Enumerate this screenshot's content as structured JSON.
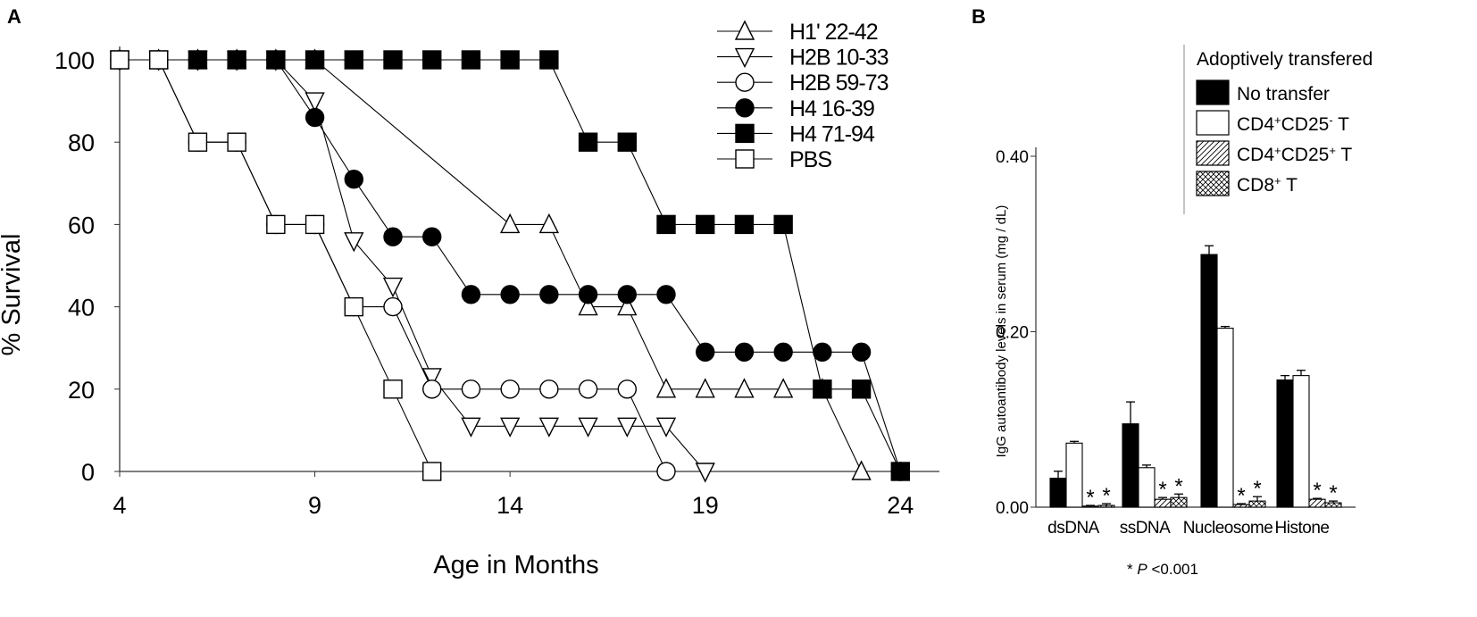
{
  "chart_data": [
    {
      "panel": "A",
      "type": "line",
      "title": "",
      "xlabel": "Age in Months",
      "ylabel": "% Survival",
      "xlim": [
        4,
        25
      ],
      "ylim": [
        0,
        100
      ],
      "xticks": [
        4,
        9,
        14,
        19,
        24
      ],
      "yticks": [
        0,
        20,
        40,
        60,
        80,
        100
      ],
      "legend_position": "top-right",
      "series": [
        {
          "name": "H1' 22-42",
          "marker": "triangle-up",
          "fill": "open",
          "x": [
            4,
            5,
            6,
            7,
            8,
            9,
            14,
            15,
            16,
            17,
            18,
            19,
            20,
            21,
            22,
            23
          ],
          "y": [
            100,
            100,
            100,
            100,
            100,
            100,
            60,
            60,
            40,
            40,
            20,
            20,
            20,
            20,
            20,
            0
          ]
        },
        {
          "name": "H2B 10-33",
          "marker": "triangle-down",
          "fill": "open",
          "x": [
            4,
            5,
            6,
            7,
            8,
            9,
            10,
            11,
            12,
            13,
            14,
            15,
            16,
            17,
            18,
            19
          ],
          "y": [
            100,
            100,
            100,
            100,
            100,
            90,
            56,
            45,
            23,
            11,
            11,
            11,
            11,
            11,
            11,
            0
          ]
        },
        {
          "name": "H2B 59-73",
          "marker": "circle",
          "fill": "open",
          "x": [
            4,
            5,
            6,
            7,
            8,
            9,
            10,
            11,
            12,
            13,
            14,
            15,
            16,
            17,
            18
          ],
          "y": [
            100,
            100,
            80,
            80,
            60,
            60,
            40,
            40,
            20,
            20,
            20,
            20,
            20,
            20,
            0
          ]
        },
        {
          "name": "H4 16-39",
          "marker": "circle",
          "fill": "solid",
          "x": [
            4,
            5,
            6,
            7,
            8,
            9,
            10,
            11,
            12,
            13,
            14,
            15,
            16,
            17,
            18,
            19,
            20,
            21,
            22,
            23,
            24
          ],
          "y": [
            100,
            100,
            100,
            100,
            100,
            86,
            71,
            57,
            57,
            43,
            43,
            43,
            43,
            43,
            43,
            29,
            29,
            29,
            29,
            29,
            0
          ]
        },
        {
          "name": "H4 71-94",
          "marker": "square",
          "fill": "solid",
          "x": [
            4,
            5,
            6,
            7,
            8,
            9,
            10,
            11,
            12,
            13,
            14,
            15,
            16,
            17,
            18,
            19,
            20,
            21,
            22,
            23,
            24
          ],
          "y": [
            100,
            100,
            100,
            100,
            100,
            100,
            100,
            100,
            100,
            100,
            100,
            100,
            80,
            80,
            60,
            60,
            60,
            60,
            20,
            20,
            0
          ]
        },
        {
          "name": "PBS",
          "marker": "square",
          "fill": "open",
          "x": [
            4,
            5,
            6,
            7,
            8,
            9,
            10,
            11,
            12
          ],
          "y": [
            100,
            100,
            80,
            80,
            60,
            60,
            40,
            20,
            0
          ]
        }
      ]
    },
    {
      "panel": "B",
      "type": "bar",
      "title": "",
      "xlabel": "",
      "ylabel": "IgG autoantibody levels in serum (mg / dL)",
      "ylim": [
        0,
        0.4
      ],
      "yticks": [
        "0.00",
        "0.20",
        "0.40"
      ],
      "categories": [
        "dsDNA",
        "ssDNA",
        "Nucleosome",
        "Histone"
      ],
      "legend_title": "Adoptively transfered",
      "legend_position": "top-right",
      "series": [
        {
          "name": "No transfer",
          "name_parts": [
            "No transfer"
          ],
          "fill": "black",
          "values": [
            0.033,
            0.095,
            0.288,
            0.145
          ],
          "errors": [
            0.008,
            0.025,
            0.01,
            0.005
          ]
        },
        {
          "name": "CD4+CD25- T",
          "name_parts": [
            "CD4",
            "+",
            "CD25",
            "-",
            " T"
          ],
          "fill": "white",
          "values": [
            0.073,
            0.045,
            0.204,
            0.15
          ],
          "errors": [
            0.002,
            0.003,
            0.002,
            0.006
          ]
        },
        {
          "name": "CD4+CD25+ T",
          "name_parts": [
            "CD4",
            "+",
            "CD25",
            "+",
            " T"
          ],
          "fill": "hatch",
          "values": [
            0.001,
            0.009,
            0.003,
            0.009
          ],
          "errors": [
            0.001,
            0.002,
            0.001,
            0.001
          ]
        },
        {
          "name": "CD8+ T",
          "name_parts": [
            "CD8",
            "+",
            " T"
          ],
          "fill": "crosshatch",
          "values": [
            0.002,
            0.011,
            0.007,
            0.005
          ],
          "errors": [
            0.002,
            0.004,
            0.005,
            0.002
          ]
        }
      ],
      "significance_marker": "*",
      "footnote": {
        "star": "* ",
        "p": "P",
        "rest": " <0.001"
      }
    }
  ],
  "panels": {
    "a_label": "A",
    "b_label": "B"
  },
  "colors": {
    "ink": "#000000",
    "axis": "#333333",
    "divider": "#888888"
  }
}
